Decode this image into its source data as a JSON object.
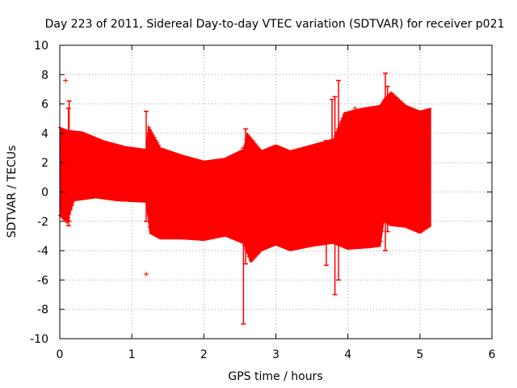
{
  "chart_data": {
    "type": "line",
    "title": "Day 223 of 2011, Sidereal Day-to-day VTEC variation (SDTVAR) for receiver p021",
    "xlabel": "GPS time / hours",
    "ylabel": "SDTVAR / TECUs",
    "xlim": [
      0,
      6
    ],
    "ylim": [
      -10,
      10
    ],
    "x_ticks": [
      "0",
      "1",
      "2",
      "3",
      "4",
      "5",
      "6"
    ],
    "y_ticks": [
      "10",
      "8",
      "6",
      "4",
      "2",
      "0",
      "-2",
      "-4",
      "-6",
      "-8",
      "-10"
    ],
    "grid": true,
    "series": [
      {
        "name": "SDTVAR",
        "color": "#ff0000",
        "style": "error-bars",
        "band_upper": [
          [
            0.0,
            4.4
          ],
          [
            0.1,
            4.2
          ],
          [
            0.3,
            4.1
          ],
          [
            0.6,
            3.5
          ],
          [
            0.9,
            3.1
          ],
          [
            1.2,
            2.9
          ],
          [
            1.23,
            4.5
          ],
          [
            1.4,
            3.0
          ],
          [
            1.7,
            2.5
          ],
          [
            2.0,
            2.1
          ],
          [
            2.3,
            2.3
          ],
          [
            2.55,
            2.9
          ],
          [
            2.6,
            4.0
          ],
          [
            2.8,
            2.8
          ],
          [
            3.0,
            3.2
          ],
          [
            3.2,
            2.8
          ],
          [
            3.5,
            3.2
          ],
          [
            3.8,
            3.6
          ],
          [
            3.95,
            5.4
          ],
          [
            4.2,
            5.7
          ],
          [
            4.45,
            5.9
          ],
          [
            4.5,
            6.3
          ],
          [
            4.6,
            6.8
          ],
          [
            4.8,
            5.9
          ],
          [
            5.0,
            5.5
          ],
          [
            5.15,
            5.7
          ]
        ],
        "band_lower": [
          [
            0.0,
            -1.6
          ],
          [
            0.1,
            -2.1
          ],
          [
            0.2,
            -0.6
          ],
          [
            0.5,
            -0.4
          ],
          [
            0.8,
            -0.6
          ],
          [
            1.2,
            -0.7
          ],
          [
            1.25,
            -2.8
          ],
          [
            1.4,
            -3.2
          ],
          [
            1.7,
            -3.2
          ],
          [
            2.0,
            -3.3
          ],
          [
            2.3,
            -3.0
          ],
          [
            2.55,
            -3.5
          ],
          [
            2.65,
            -4.8
          ],
          [
            2.8,
            -4.0
          ],
          [
            3.0,
            -3.6
          ],
          [
            3.2,
            -4.0
          ],
          [
            3.5,
            -3.7
          ],
          [
            3.8,
            -3.5
          ],
          [
            4.0,
            -3.9
          ],
          [
            4.3,
            -3.8
          ],
          [
            4.45,
            -3.7
          ],
          [
            4.5,
            -2.0
          ],
          [
            4.6,
            -2.3
          ],
          [
            4.8,
            -2.4
          ],
          [
            5.0,
            -2.8
          ],
          [
            5.15,
            -2.3
          ]
        ],
        "spikes": [
          [
            0.12,
            -2.3,
            5.7
          ],
          [
            0.13,
            -2.0,
            6.2
          ],
          [
            1.2,
            -2.0,
            5.5
          ],
          [
            2.55,
            -9.0,
            3.0
          ],
          [
            2.58,
            -4.9,
            4.3
          ],
          [
            3.7,
            -5.0,
            3.5
          ],
          [
            3.78,
            -3.0,
            6.3
          ],
          [
            3.82,
            -7.0,
            6.5
          ],
          [
            3.87,
            -6.0,
            7.6
          ],
          [
            4.05,
            -3.5,
            5.0
          ],
          [
            4.52,
            -4.0,
            8.1
          ],
          [
            4.55,
            -2.7,
            7.2
          ]
        ],
        "outliers": [
          [
            0.08,
            7.6
          ],
          [
            1.2,
            -5.6
          ],
          [
            4.1,
            5.7
          ]
        ]
      }
    ]
  }
}
